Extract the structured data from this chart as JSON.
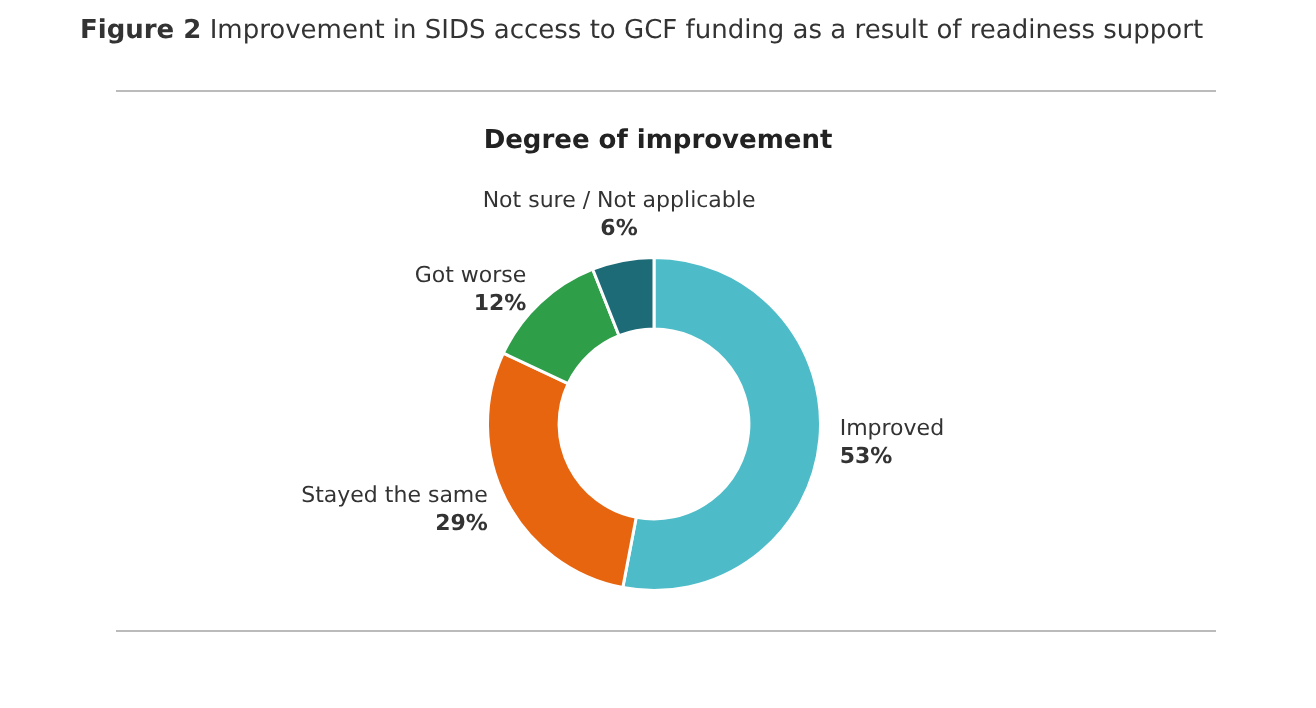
{
  "chart_data": {
    "type": "donut",
    "title": "Figure 2 Improvement in SIDS access to GCF funding as a result of readiness support",
    "subtitle": "Degree of improvement",
    "categories": [
      "Improved",
      "Stayed the same",
      "Got worse",
      "Not sure / Not applicable"
    ],
    "values": [
      53,
      29,
      12,
      6
    ],
    "colors": [
      "#4dbcc8",
      "#e8650f",
      "#2e9e48",
      "#1e6b78"
    ],
    "value_labels": [
      "53%",
      "29%",
      "12%",
      "6%"
    ],
    "legend": false
  }
}
